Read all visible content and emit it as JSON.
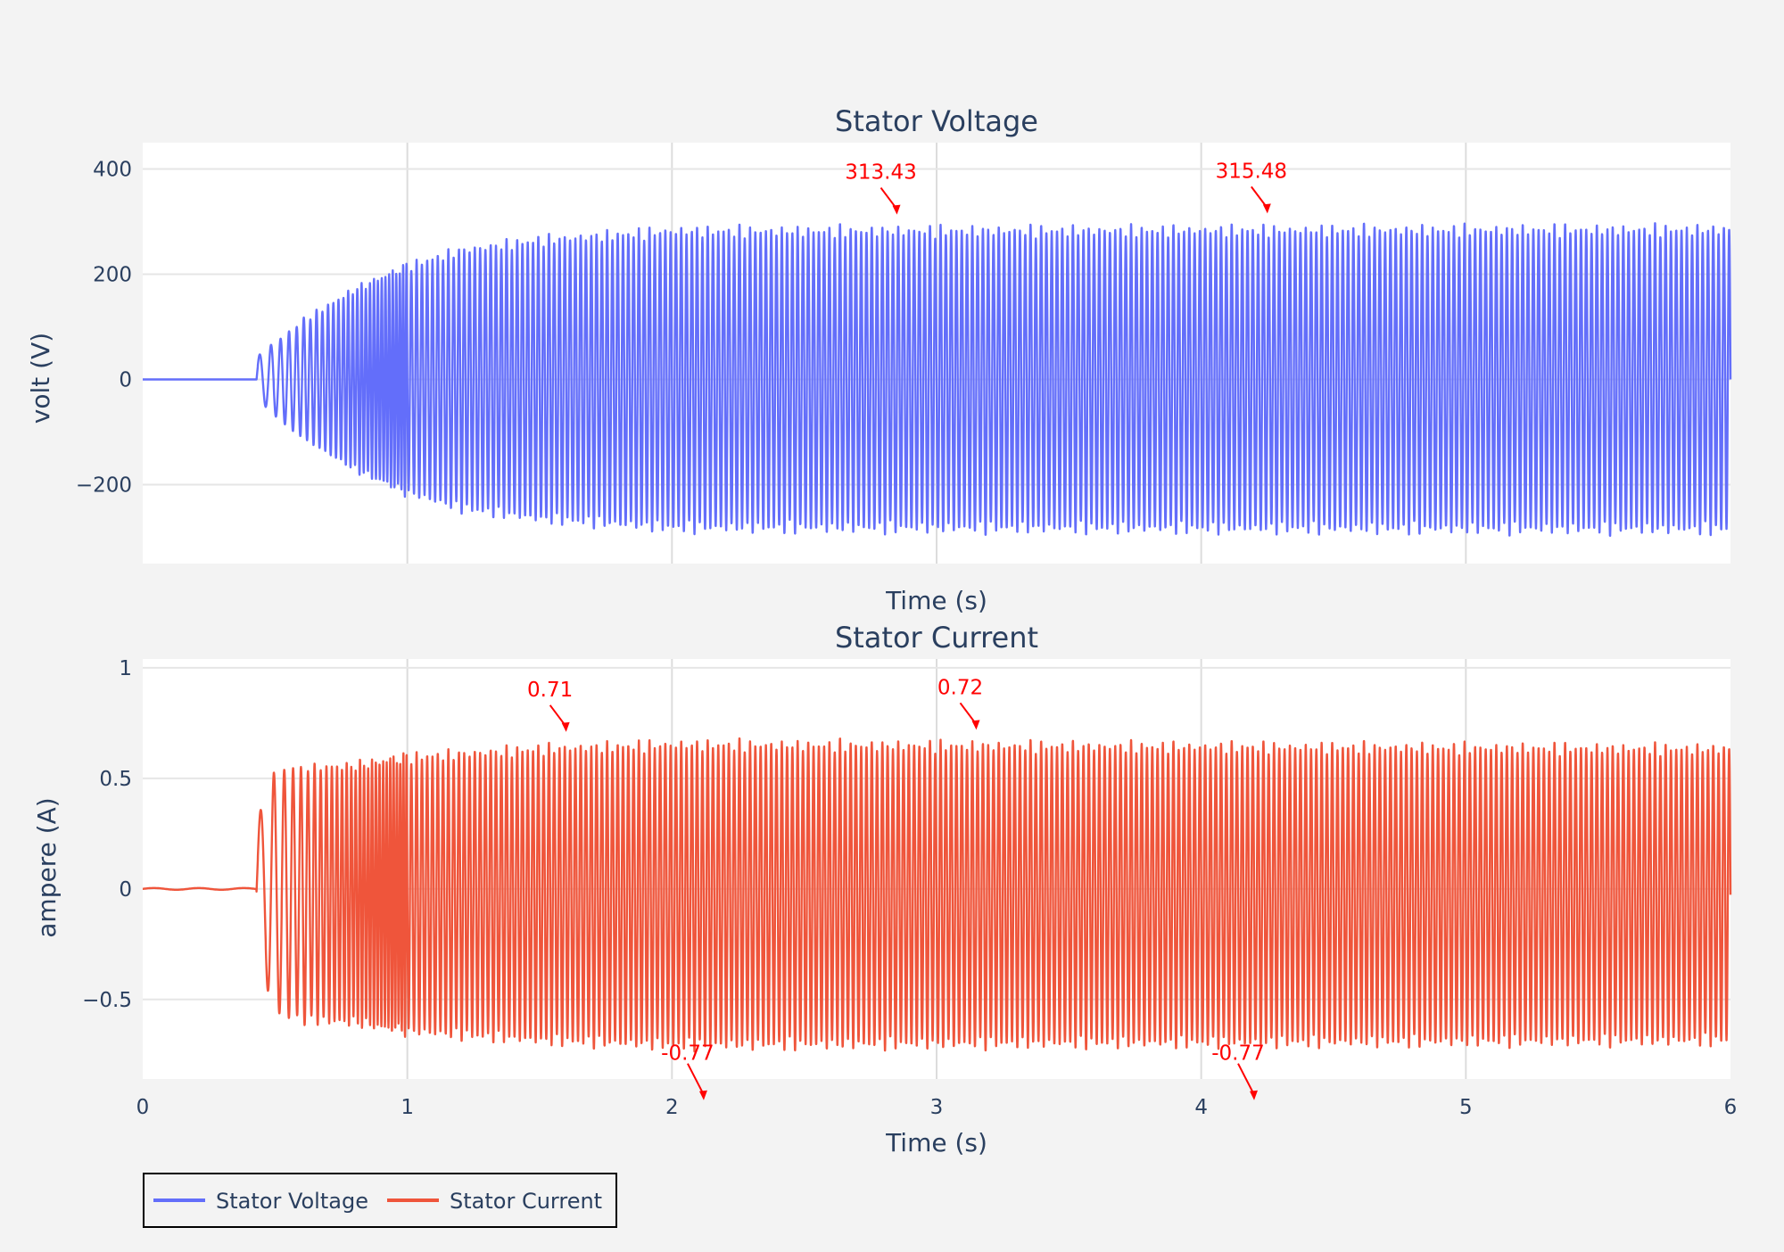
{
  "chart_data": [
    {
      "type": "line",
      "title": "Stator Voltage",
      "xlabel": "Time (s)",
      "ylabel": "volt (V)",
      "xlim": [
        0,
        6
      ],
      "ylim": [
        -350,
        450
      ],
      "xticks": [
        1,
        2,
        3,
        4,
        5
      ],
      "yticks": [
        -200,
        0,
        200,
        400
      ],
      "ytick_labels": [
        "−200",
        "0",
        "200",
        "400"
      ],
      "series": [
        {
          "name": "Stator Voltage",
          "color": "#636efa",
          "description": "Sinusoid ~50 Hz, zero until t=0.43 s, amplitude rising to ~285 V by t=2 s then steady",
          "start_time": 0.43,
          "frequency_hz": 50,
          "envelope": [
            [
              0.43,
              40
            ],
            [
              0.5,
              70
            ],
            [
              0.6,
              110
            ],
            [
              0.8,
              170
            ],
            [
              1.0,
              215
            ],
            [
              1.2,
              245
            ],
            [
              1.5,
              265
            ],
            [
              2.0,
              282
            ],
            [
              6.0,
              285
            ]
          ]
        }
      ],
      "annotations": [
        {
          "x": 2.85,
          "y": 313.43,
          "text": "313.43"
        },
        {
          "x": 4.25,
          "y": 315.48,
          "text": "315.48"
        }
      ]
    },
    {
      "type": "line",
      "title": "Stator Current",
      "xlabel": "Time (s)",
      "ylabel": "ampere (A)",
      "xlim": [
        0,
        6
      ],
      "ylim": [
        -0.86,
        1.04
      ],
      "xticks": [
        0,
        1,
        2,
        3,
        4,
        5,
        6
      ],
      "xtick_labels": [
        "0",
        "1",
        "2",
        "3",
        "4",
        "5",
        "6"
      ],
      "yticks": [
        -0.5,
        0,
        0.5,
        1
      ],
      "ytick_labels": [
        "−0.5",
        "0",
        "0.5",
        "1"
      ],
      "series": [
        {
          "name": "Stator Current",
          "color": "#ef553b",
          "description": "Startup transient then ~50 Hz sinusoid, amplitude settling near 0.65 A",
          "start_time": 0.43,
          "frequency_hz": 50,
          "envelope": [
            [
              0.43,
              0.3
            ],
            [
              0.5,
              0.55
            ],
            [
              0.6,
              0.57
            ],
            [
              0.8,
              0.58
            ],
            [
              1.0,
              0.62
            ],
            [
              1.5,
              0.66
            ],
            [
              2.0,
              0.68
            ],
            [
              6.0,
              0.66
            ]
          ]
        }
      ],
      "annotations": [
        {
          "x": 1.6,
          "y": 0.71,
          "text": "0.71"
        },
        {
          "x": 3.15,
          "y": 0.72,
          "text": "0.72"
        },
        {
          "x": 2.12,
          "y": -0.77,
          "text": "-0.77"
        },
        {
          "x": 4.2,
          "y": -0.77,
          "text": "-0.77"
        }
      ]
    }
  ],
  "legend": {
    "placement": "bottom-left",
    "items": [
      {
        "label": "Stator Voltage",
        "color": "#636efa"
      },
      {
        "label": "Stator Current",
        "color": "#ef553b"
      }
    ]
  }
}
